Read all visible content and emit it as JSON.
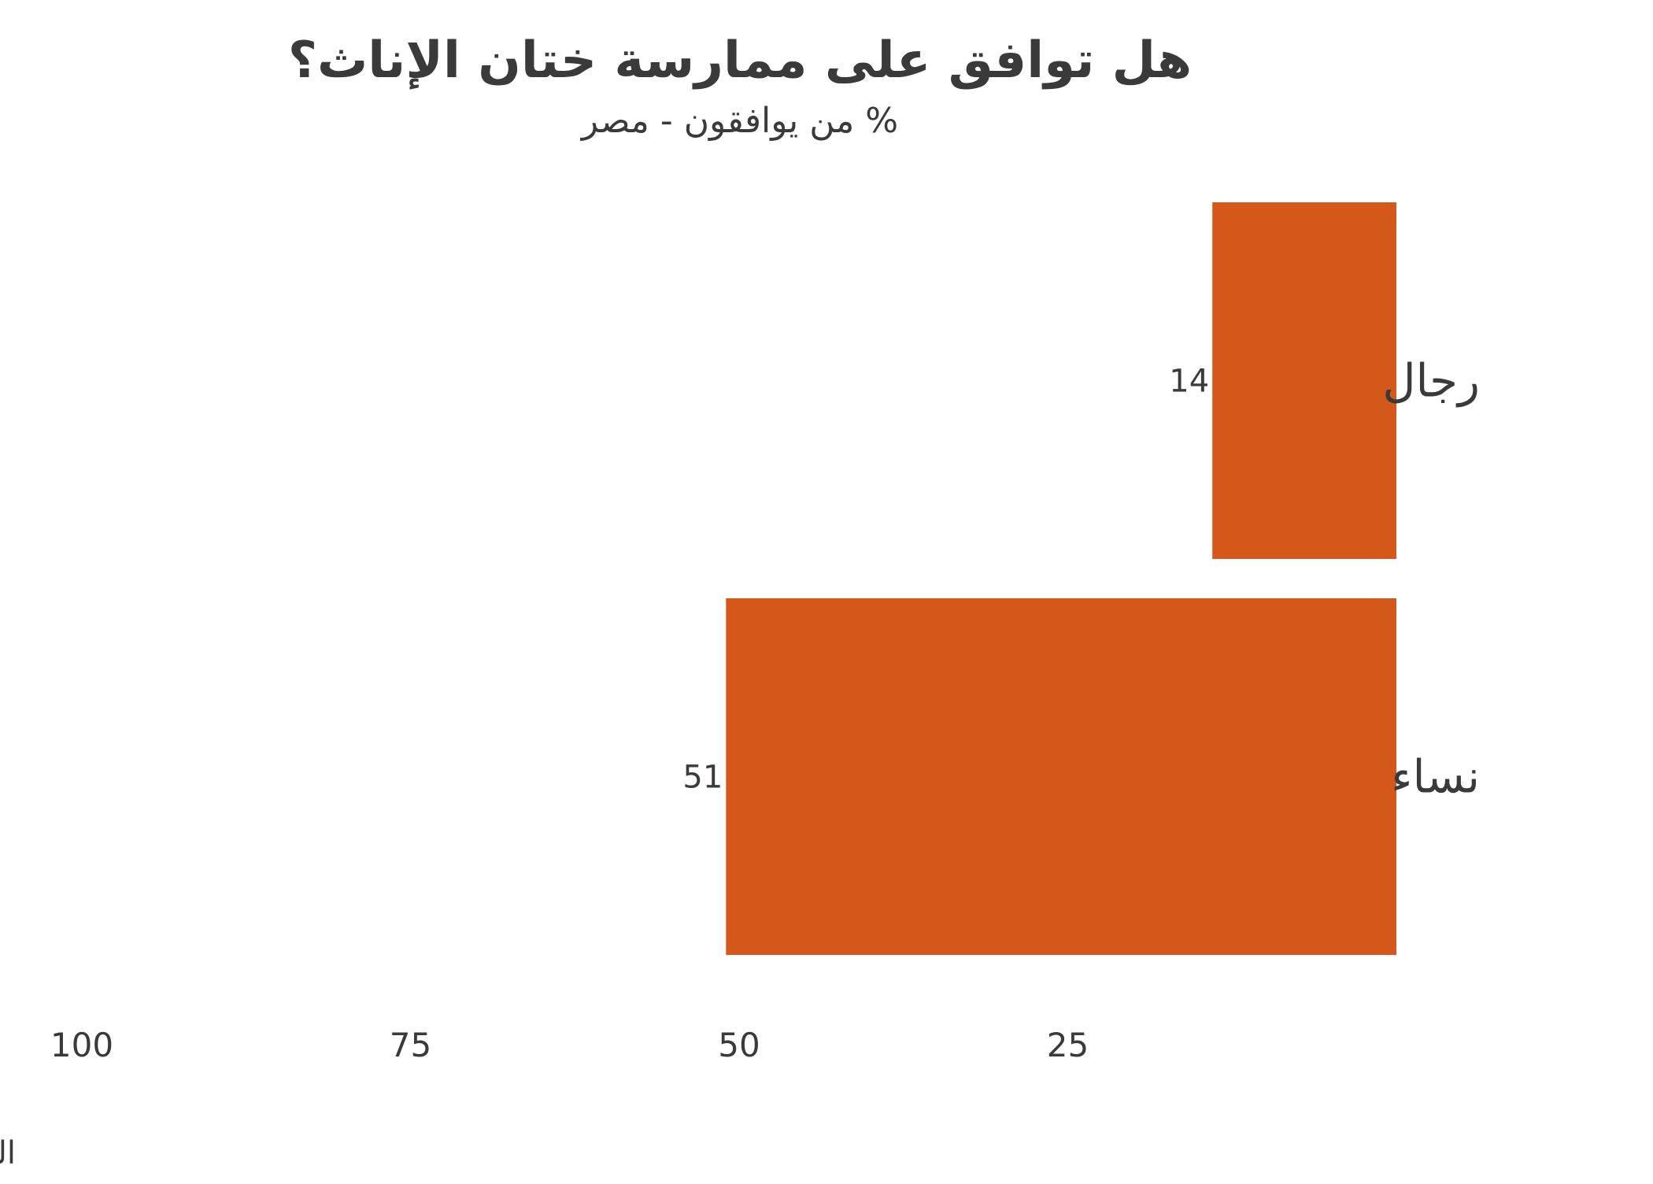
{
  "chart_data": {
    "type": "bar",
    "orientation": "horizontal",
    "direction": "right-to-left",
    "title": "هل توافق على ممارسة ختان الإناث؟",
    "subtitle": "% من يوافقون - مصر",
    "categories": [
      "رجال",
      "نساء"
    ],
    "values": [
      14,
      51
    ],
    "value_labels": [
      "14",
      "51"
    ],
    "x_ticks": [
      100,
      75,
      50,
      25
    ],
    "x_tick_labels": [
      "100",
      "75",
      "50",
      "25"
    ],
    "xlim": [
      0,
      100
    ],
    "grid": false,
    "source": "الباروميتر العربي، الدورة الخامسة"
  },
  "colors": {
    "bar": "#D5581B",
    "text": "#3a3a3a",
    "background": "#ffffff"
  }
}
